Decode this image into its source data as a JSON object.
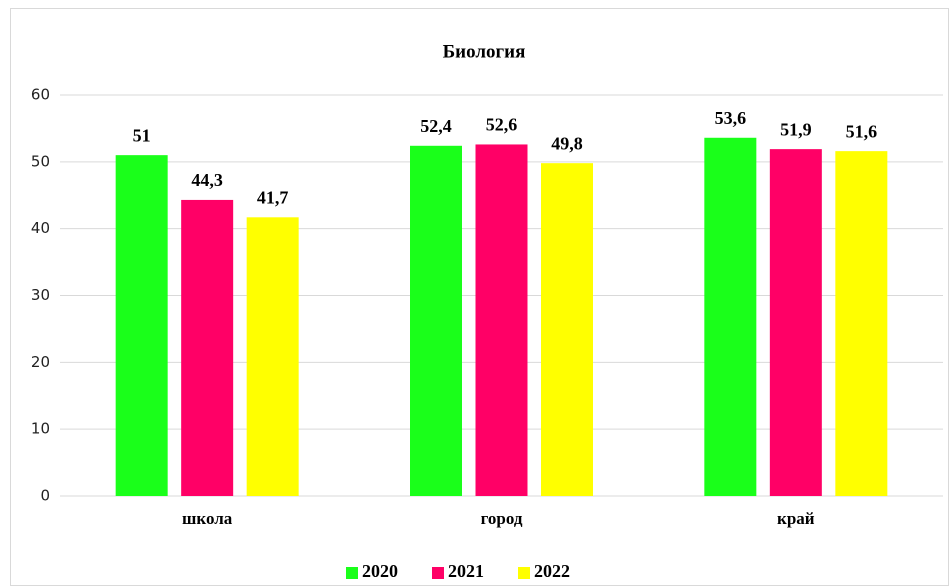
{
  "chart_data": {
    "type": "bar",
    "title": "Биология",
    "categories": [
      "школа",
      "город",
      "край"
    ],
    "series": [
      {
        "name": "2020",
        "color": "#1aff1a",
        "values": [
          51,
          52.4,
          53.6
        ],
        "value_labels": [
          "51",
          "52,4",
          "53,6"
        ]
      },
      {
        "name": "2021",
        "color": "#ff0066",
        "values": [
          44.3,
          52.6,
          51.9
        ],
        "value_labels": [
          "44,3",
          "52,6",
          "51,9"
        ]
      },
      {
        "name": "2022",
        "color": "#ffff00",
        "values": [
          41.7,
          49.8,
          51.6
        ],
        "value_labels": [
          "41,7",
          "49,8",
          "51,6"
        ]
      }
    ],
    "ylim": [
      0,
      60
    ],
    "yticks": [
      0,
      10,
      20,
      30,
      40,
      50,
      60
    ],
    "grid": true,
    "legend": "bottom"
  }
}
